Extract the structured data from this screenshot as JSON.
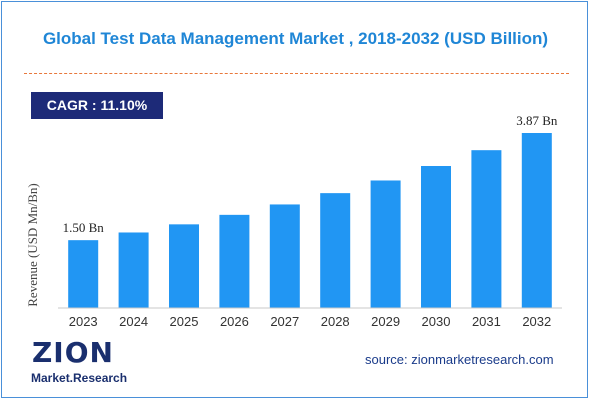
{
  "header": {
    "title": "Global Test Data Management Market , 2018-2032 (USD Billion)"
  },
  "cagr": {
    "label": "CAGR :",
    "value": "11.10%"
  },
  "chart_data": {
    "type": "bar",
    "categories": [
      "2023",
      "2024",
      "2025",
      "2026",
      "2027",
      "2028",
      "2029",
      "2030",
      "2031",
      "2032"
    ],
    "values": [
      1.5,
      1.67,
      1.85,
      2.06,
      2.29,
      2.54,
      2.82,
      3.14,
      3.49,
      3.87
    ],
    "data_labels": [
      {
        "index": 0,
        "text": "1.50 Bn"
      },
      {
        "index": 9,
        "text": "3.87 Bn"
      }
    ],
    "xlabel": "",
    "ylabel": "Revenue (USD Mn/Bn)",
    "ylim": [
      0,
      4.2
    ],
    "grid": false,
    "legend": "none",
    "bar_color": "#2196f3"
  },
  "footer": {
    "logo_text_main": "ZION",
    "logo_text_sub": "Market.Research",
    "source": "source: zionmarketresearch.com"
  },
  "colors": {
    "title": "#1f86d6",
    "divider": "#e8783c",
    "badge_bg": "#1d2a78",
    "bar": "#2196f3",
    "logo": "#1a2f6e",
    "logo_accent": "#f39c12"
  }
}
